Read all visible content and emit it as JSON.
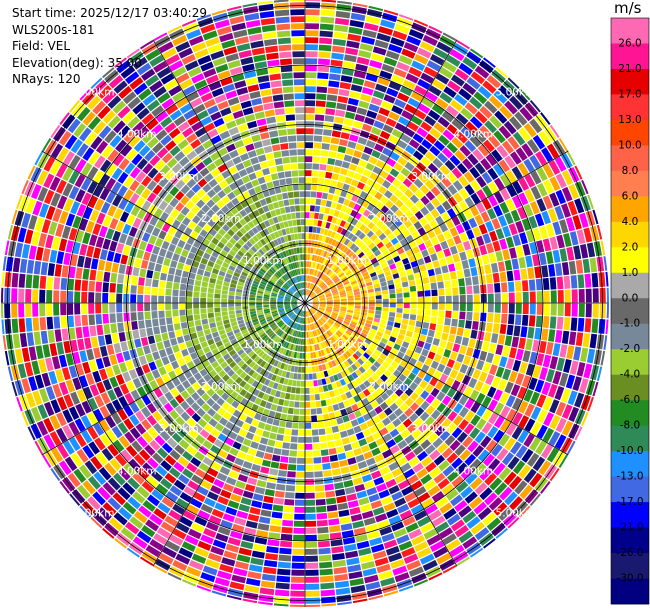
{
  "header": {
    "start_time": "Start time: 2025/12/17 03:40:29",
    "instrument": "WLS200s-181",
    "field": "Field: VEL",
    "elevation": "Elevation(deg): 35.00",
    "nrays": "NRays: 120"
  },
  "chart_data": {
    "type": "heatmap",
    "projection": "polar-ppi",
    "n_rays": 120,
    "range_rings_km": [
      1,
      2,
      3,
      4,
      5
    ],
    "range_ring_labels": [
      "1.00km",
      "2.00km",
      "3.00km",
      "4.00km",
      "5.00km"
    ],
    "spokes": true,
    "colorbar": {
      "unit": "m/s",
      "tick_labels": [
        "26.0",
        "21.0",
        "17.0",
        "13.0",
        "10.0",
        "8.0",
        "6.0",
        "4.0",
        "2.0",
        "1.0",
        "0.0",
        "-1.0",
        "-2.0",
        "-4.0",
        "-6.0",
        "-8.0",
        "-10.0",
        "-13.0",
        "-17.0",
        "-21.0",
        "-26.0",
        "-30.0"
      ],
      "colors": [
        "#ff69b4",
        "#ff1493",
        "#e60000",
        "#ff3333",
        "#ff4500",
        "#ff6347",
        "#ff7f50",
        "#ffa500",
        "#ffd700",
        "#ffff00",
        "#a9a9a9",
        "#696969",
        "#778899",
        "#9acd32",
        "#6b8e23",
        "#228b22",
        "#2e8b57",
        "#1e90ff",
        "#4169e1",
        "#0000ff",
        "#00008b",
        "#191970",
        "#000080"
      ]
    },
    "pattern": {
      "inner_zone_km": 2.5,
      "mid_zone_km": 3.3,
      "description_note": ""
    }
  }
}
